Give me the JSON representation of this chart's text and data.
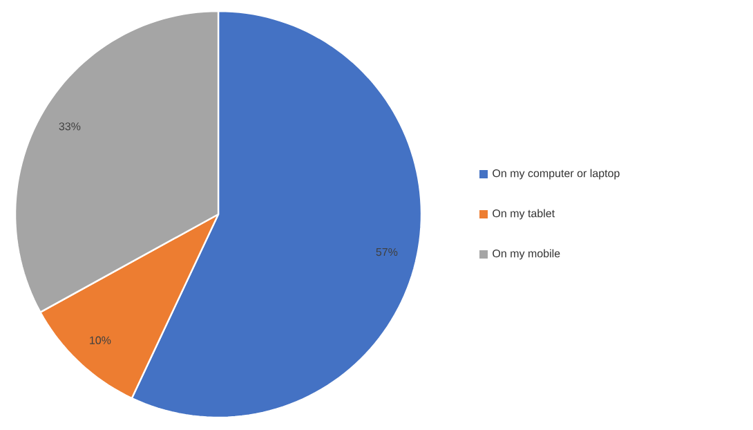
{
  "chart_data": {
    "type": "pie",
    "categories": [
      "On my computer or laptop",
      "On my tablet",
      "On my mobile"
    ],
    "values": [
      57,
      10,
      33
    ],
    "colors": [
      "#4472c4",
      "#ed7d31",
      "#a5a5a5"
    ],
    "value_labels": [
      "57%",
      "10%",
      "33%"
    ],
    "legend": "right"
  }
}
